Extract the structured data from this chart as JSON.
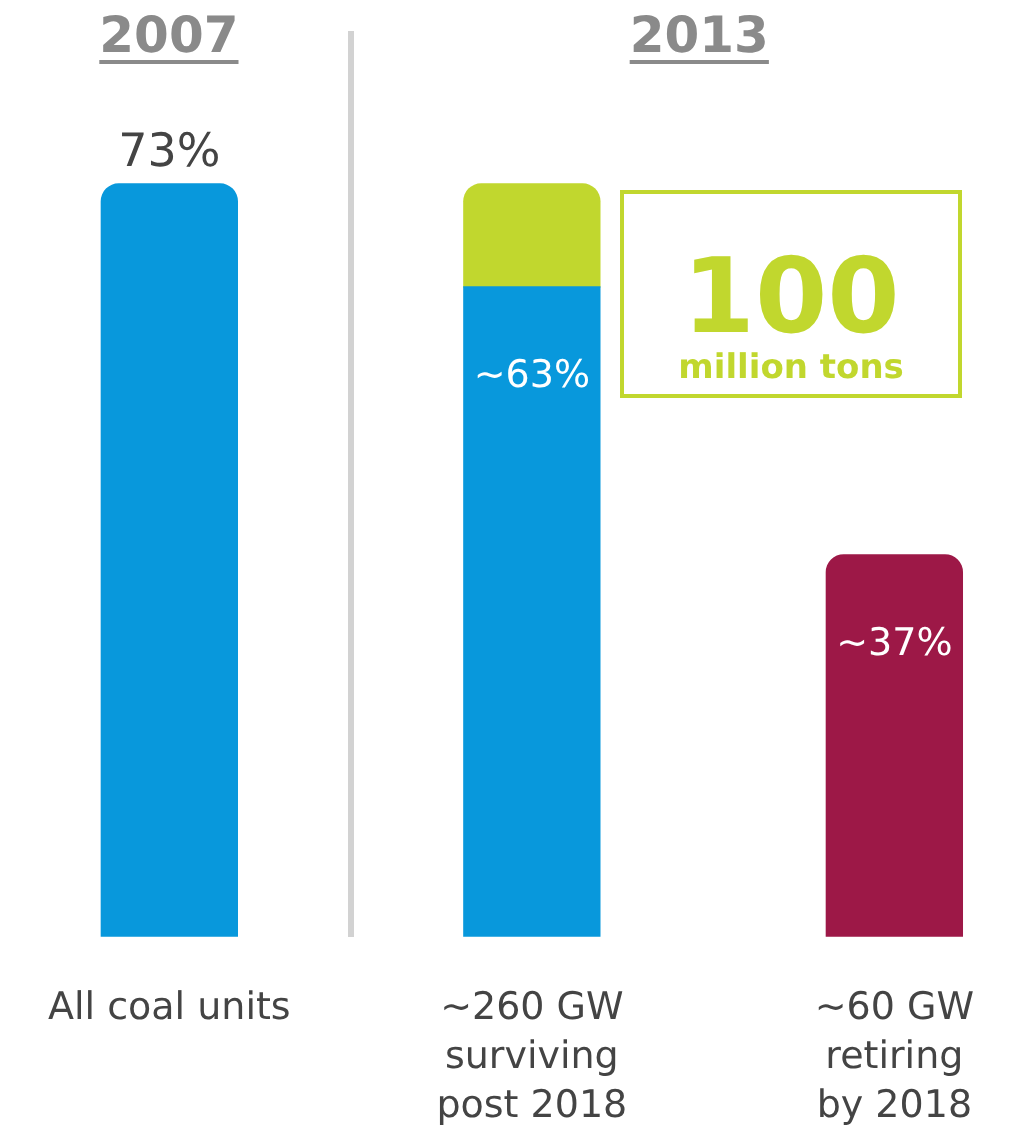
{
  "chart_data": {
    "type": "bar",
    "categories": [
      "All coal units",
      "~260 GW surviving post 2018",
      "~60 GW retiring by 2018"
    ],
    "stacked": true,
    "tick_labels": "x",
    "series": [
      {
        "values": [
          73,
          63,
          37
        ],
        "colors": [
          "#0898dc",
          "#0898dc",
          "#9d1847"
        ],
        "value_labels": [
          "73%",
          "~63%",
          "~37%"
        ]
      },
      {
        "values": [
          null,
          10,
          null
        ],
        "color": "#c1d72e"
      }
    ],
    "annotations": [
      "2007",
      "2013",
      "100 million tons"
    ]
  }
}
